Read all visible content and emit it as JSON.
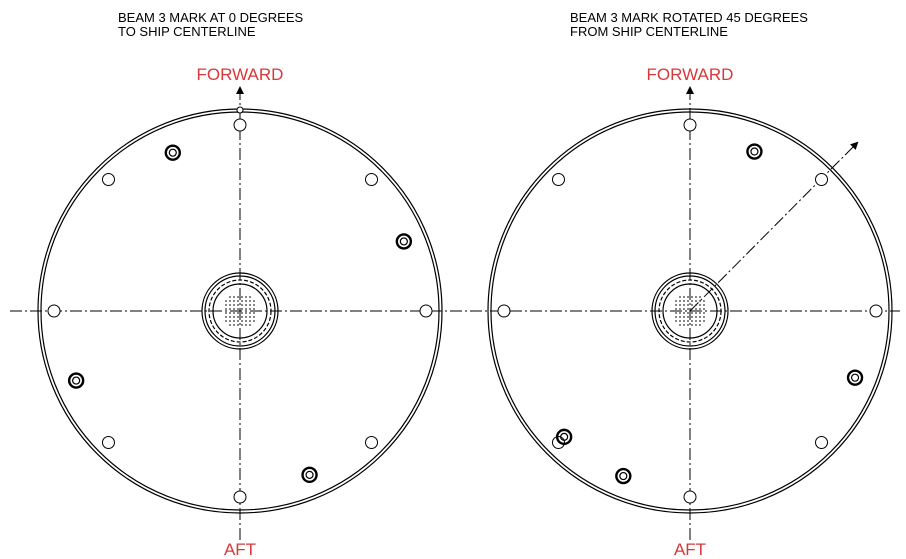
{
  "panels": [
    {
      "title_lines": [
        "BEAM 3 MARK AT 0 DEGREES",
        "TO SHIP CENTERLINE"
      ],
      "forward": "FORWARD",
      "aft": "AFT"
    },
    {
      "title_lines": [
        "BEAM 3 MARK ROTATED 45 DEGREES",
        "FROM SHIP CENTERLINE"
      ],
      "forward": "FORWARD",
      "aft": "AFT"
    }
  ]
}
